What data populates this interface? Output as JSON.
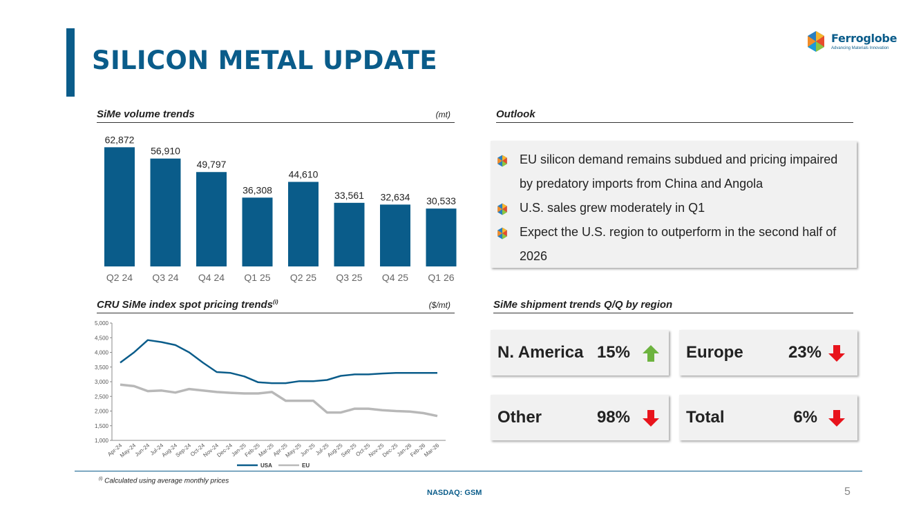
{
  "header": {
    "title": "SILICON METAL UPDATE"
  },
  "logo": {
    "name": "Ferroglobe",
    "tagline": "Advancing Materials Innovation"
  },
  "sections": {
    "volume": {
      "title": "SiMe volume trends",
      "unit": "(mt)"
    },
    "outlook": {
      "title": "Outlook"
    },
    "pricing": {
      "title": "CRU SiMe index spot pricing trends",
      "sup": "(i)",
      "unit": "($/mt)"
    },
    "shipment": {
      "title": "SiMe shipment trends Q/Q by region"
    }
  },
  "outlook": {
    "bullets": [
      "EU silicon demand remains subdued and pricing impaired by predatory imports from China and Angola",
      "U.S. sales grew moderately in Q1",
      "Expect the U.S. region to outperform in the second half of 2026"
    ]
  },
  "shipments": [
    {
      "region": "N. America",
      "pct": "15%",
      "direction": "up",
      "color": "#6db33f"
    },
    {
      "region": "Europe",
      "pct": "23%",
      "direction": "down",
      "color": "#e8141c"
    },
    {
      "region": "Other",
      "pct": "98%",
      "direction": "down",
      "color": "#e8141c"
    },
    {
      "region": "Total",
      "pct": "6%",
      "direction": "down",
      "color": "#e8141c"
    }
  ],
  "chart_data": [
    {
      "type": "bar",
      "title": "SiMe volume trends",
      "ylabel": "(mt)",
      "categories": [
        "Q2 24",
        "Q3 24",
        "Q4 24",
        "Q1 25",
        "Q2 25",
        "Q3 25",
        "Q4 25",
        "Q1 26"
      ],
      "values": [
        62872,
        56910,
        49797,
        36308,
        44610,
        33561,
        32634,
        30533
      ],
      "labels": [
        "62,872",
        "56,910",
        "49,797",
        "36,308",
        "44,610",
        "33,561",
        "32,634",
        "30,533"
      ],
      "ylim": [
        0,
        70000
      ],
      "color": "#0a5c8a"
    },
    {
      "type": "line",
      "title": "CRU SiMe index spot pricing trends",
      "ylabel": "($/mt)",
      "x": [
        "Apr-24",
        "May-24",
        "Jun-24",
        "Jul-24",
        "Aug-24",
        "Sep-24",
        "Oct-24",
        "Nov-24",
        "Dec-24",
        "Jan-25",
        "Feb-25",
        "Mar-25",
        "Apr-25",
        "May-25",
        "Jun-25",
        "Jul-25",
        "Aug-25",
        "Sep-25",
        "Oct-25",
        "Nov-25",
        "Dec-25",
        "Jan-26",
        "Feb-26",
        "Mar-26"
      ],
      "yticks": [
        "1,000",
        "1,500",
        "2,000",
        "2,500",
        "3,000",
        "3,500",
        "4,000",
        "4,500",
        "5,000"
      ],
      "ylim": [
        1000,
        5000
      ],
      "grid": false,
      "legend": "bottom",
      "series": [
        {
          "name": "USA",
          "color": "#0a5c8a",
          "values": [
            3650,
            4000,
            4420,
            4350,
            4250,
            4000,
            3650,
            3330,
            3300,
            3180,
            2980,
            2950,
            2950,
            3020,
            3020,
            3060,
            3200,
            3250,
            3250,
            3280,
            3300,
            3300,
            3300,
            3300
          ]
        },
        {
          "name": "EU",
          "color": "#b8b8b8",
          "values": [
            2900,
            2850,
            2680,
            2700,
            2630,
            2750,
            2700,
            2650,
            2620,
            2600,
            2600,
            2650,
            2350,
            2350,
            2350,
            1950,
            1950,
            2080,
            2080,
            2030,
            2000,
            1980,
            1930,
            1830
          ]
        }
      ]
    }
  ],
  "footer": {
    "footnote_sup": "(i)",
    "footnote": "Calculated using average monthly prices",
    "ticker": "NASDAQ: GSM",
    "page": "5"
  }
}
